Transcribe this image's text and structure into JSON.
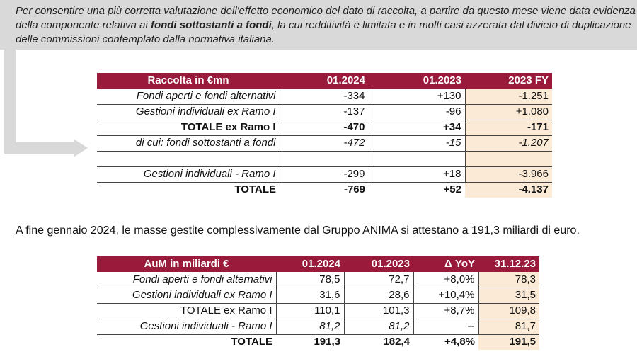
{
  "note": {
    "part1": "Per consentire una più corretta valutazione dell'effetto economico del dato di raccolta, a partire da questo mese viene data evidenza della componente relativa ai ",
    "bold": "fondi sottostanti a fondi",
    "part2": ", la cui redditività è limitata e in molti casi azzerata dal divieto di duplicazione delle commissioni contemplato dalla normativa italiana."
  },
  "table1": {
    "headers": [
      "Raccolta in €mn",
      "01.2024",
      "01.2023",
      "2023 FY"
    ],
    "rows": [
      {
        "label": "Fondi aperti e fondi alternativi",
        "values": [
          "-334",
          "+130",
          "-1.251"
        ]
      },
      {
        "label": "Gestioni individuali ex Ramo I",
        "values": [
          "-137",
          "-96",
          "+1.080"
        ]
      },
      {
        "label": "TOTALE ex Ramo I",
        "values": [
          "-470",
          "+34",
          "-171"
        ]
      },
      {
        "label": "di cui: fondi sottostanti a fondi",
        "values": [
          "-472",
          "-15",
          "-1.207"
        ]
      },
      {
        "label": "",
        "values": [
          "",
          "",
          ""
        ]
      },
      {
        "label": "Gestioni individuali - Ramo I",
        "values": [
          "-299",
          "+18",
          "-3.966"
        ]
      },
      {
        "label": "TOTALE",
        "values": [
          "-769",
          "+52",
          "-4.137"
        ]
      }
    ]
  },
  "mid_text": "A fine gennaio 2024, le masse gestite complessivamente dal Gruppo ANIMA si attestano a 191,3 miliardi di euro.",
  "table2": {
    "headers": [
      "AuM in miliardi €",
      "01.2024",
      "01.2023",
      "Δ YoY",
      "31.12.23"
    ],
    "rows": [
      {
        "label": "Fondi aperti e fondi alternativi",
        "values": [
          "78,5",
          "72,7",
          "+8,0%",
          "78,3"
        ]
      },
      {
        "label": "Gestioni individuali ex Ramo I",
        "values": [
          "31,6",
          "28,6",
          "+10,4%",
          "31,5"
        ]
      },
      {
        "label": "TOTALE ex Ramo I",
        "values": [
          "110,1",
          "101,3",
          "+8,7%",
          "109,8"
        ]
      },
      {
        "label": "Gestioni individuali - Ramo I",
        "values": [
          "81,2",
          "81,2",
          "--",
          "81,7"
        ]
      },
      {
        "label": "TOTALE",
        "values": [
          "191,3",
          "182,4",
          "+4,8%",
          "191,5"
        ]
      }
    ]
  }
}
